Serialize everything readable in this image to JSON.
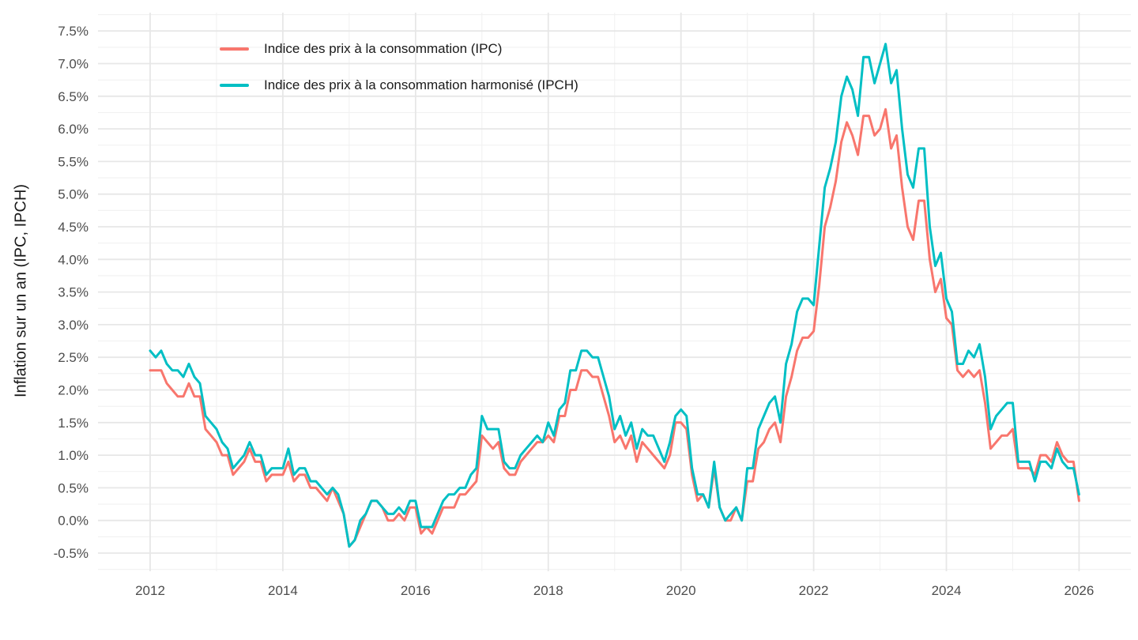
{
  "figure": {
    "background": "#FFFFFF",
    "y_axis": {
      "title": "Inflation sur un an (IPC, IPCH)",
      "tick_labels": [
        "7.5%",
        "7.0%",
        "6.5%",
        "6.0%",
        "5.5%",
        "5.0%",
        "4.5%",
        "4.0%",
        "3.5%",
        "3.0%",
        "2.5%",
        "2.0%",
        "1.5%",
        "1.0%",
        "0.5%",
        "0.0%",
        "-0.5%"
      ],
      "tick_values": [
        7.5,
        7.0,
        6.5,
        6.0,
        5.5,
        5.0,
        4.5,
        4.0,
        3.5,
        3.0,
        2.5,
        2.0,
        1.5,
        1.0,
        0.5,
        0.0,
        -0.5
      ],
      "tick_color": "#4D4D4D"
    },
    "x_axis": {
      "tick_labels": [
        "2012",
        "2014",
        "2016",
        "2018",
        "2020",
        "2022",
        "2024",
        "2026"
      ],
      "tick_values": [
        2012,
        2014,
        2016,
        2018,
        2020,
        2022,
        2024,
        2026
      ],
      "tick_color": "#4D4D4D"
    },
    "legend": {
      "items": [
        {
          "label": "Indice des prix à la consommation (IPC)",
          "color": "#F8766D"
        },
        {
          "label": "Indice des prix à la consommation harmonisé (IPCH)",
          "color": "#00BFC4"
        }
      ]
    },
    "grid": {
      "major_color": "#E7E7E7",
      "minor_color": "#F1F1F1"
    }
  },
  "chart_data": {
    "type": "line",
    "title": "",
    "xlabel": "",
    "ylabel": "Inflation sur un an (IPC, IPCH)",
    "x_unit": "month",
    "x_start": "2012-01",
    "x_end": "2026-01",
    "xlim_years": [
      2012,
      2026
    ],
    "ylim": [
      -0.5,
      7.5
    ],
    "y_tick_step": 0.5,
    "grid": "on",
    "legend_position": "top-left-inside",
    "series": [
      {
        "name": "Indice des prix à la consommation (IPC)",
        "color": "#F8766D",
        "values": [
          2.3,
          2.3,
          2.3,
          2.1,
          2.0,
          1.9,
          1.9,
          2.1,
          1.9,
          1.9,
          1.4,
          1.3,
          1.2,
          1.0,
          1.0,
          0.7,
          0.8,
          0.9,
          1.1,
          0.9,
          0.9,
          0.6,
          0.7,
          0.7,
          0.7,
          0.9,
          0.6,
          0.7,
          0.7,
          0.5,
          0.5,
          0.4,
          0.3,
          0.5,
          0.3,
          0.1,
          -0.4,
          -0.3,
          -0.1,
          0.1,
          0.3,
          0.3,
          0.2,
          0.0,
          0.0,
          0.1,
          0.0,
          0.2,
          0.2,
          -0.2,
          -0.1,
          -0.2,
          0.0,
          0.2,
          0.2,
          0.2,
          0.4,
          0.4,
          0.5,
          0.6,
          1.3,
          1.2,
          1.1,
          1.2,
          0.8,
          0.7,
          0.7,
          0.9,
          1.0,
          1.1,
          1.2,
          1.2,
          1.3,
          1.2,
          1.6,
          1.6,
          2.0,
          2.0,
          2.3,
          2.3,
          2.2,
          2.2,
          1.9,
          1.6,
          1.2,
          1.3,
          1.1,
          1.3,
          0.9,
          1.2,
          1.1,
          1.0,
          0.9,
          0.8,
          1.0,
          1.5,
          1.5,
          1.4,
          0.7,
          0.3,
          0.4,
          0.2,
          0.8,
          0.2,
          0.0,
          0.0,
          0.2,
          0.0,
          0.6,
          0.6,
          1.1,
          1.2,
          1.4,
          1.5,
          1.2,
          1.9,
          2.2,
          2.6,
          2.8,
          2.8,
          2.9,
          3.6,
          4.5,
          4.8,
          5.2,
          5.8,
          6.1,
          5.9,
          5.6,
          6.2,
          6.2,
          5.9,
          6.0,
          6.3,
          5.7,
          5.9,
          5.1,
          4.5,
          4.3,
          4.9,
          4.9,
          4.0,
          3.5,
          3.7,
          3.1,
          3.0,
          2.3,
          2.2,
          2.3,
          2.2,
          2.3,
          1.8,
          1.1,
          1.2,
          1.3,
          1.3,
          1.4,
          0.8,
          0.8,
          0.8,
          0.7,
          1.0,
          1.0,
          0.9,
          1.2,
          1.0,
          0.9,
          0.9,
          0.3
        ]
      },
      {
        "name": "Indice des prix à la consommation harmonisé (IPCH)",
        "color": "#00BFC4",
        "values": [
          2.6,
          2.5,
          2.6,
          2.4,
          2.3,
          2.3,
          2.2,
          2.4,
          2.2,
          2.1,
          1.6,
          1.5,
          1.4,
          1.2,
          1.1,
          0.8,
          0.9,
          1.0,
          1.2,
          1.0,
          1.0,
          0.7,
          0.8,
          0.8,
          0.8,
          1.1,
          0.7,
          0.8,
          0.8,
          0.6,
          0.6,
          0.5,
          0.4,
          0.5,
          0.4,
          0.1,
          -0.4,
          -0.3,
          0.0,
          0.1,
          0.3,
          0.3,
          0.2,
          0.1,
          0.1,
          0.2,
          0.1,
          0.3,
          0.3,
          -0.1,
          -0.1,
          -0.1,
          0.1,
          0.3,
          0.4,
          0.4,
          0.5,
          0.5,
          0.7,
          0.8,
          1.6,
          1.4,
          1.4,
          1.4,
          0.9,
          0.8,
          0.8,
          1.0,
          1.1,
          1.2,
          1.3,
          1.2,
          1.5,
          1.3,
          1.7,
          1.8,
          2.3,
          2.3,
          2.6,
          2.6,
          2.5,
          2.5,
          2.2,
          1.9,
          1.4,
          1.6,
          1.3,
          1.5,
          1.1,
          1.4,
          1.3,
          1.3,
          1.1,
          0.9,
          1.2,
          1.6,
          1.7,
          1.6,
          0.8,
          0.4,
          0.4,
          0.2,
          0.9,
          0.2,
          0.0,
          0.1,
          0.2,
          0.0,
          0.8,
          0.8,
          1.4,
          1.6,
          1.8,
          1.9,
          1.5,
          2.4,
          2.7,
          3.2,
          3.4,
          3.4,
          3.3,
          4.2,
          5.1,
          5.4,
          5.8,
          6.5,
          6.8,
          6.6,
          6.2,
          7.1,
          7.1,
          6.7,
          7.0,
          7.3,
          6.7,
          6.9,
          6.0,
          5.3,
          5.1,
          5.7,
          5.7,
          4.5,
          3.9,
          4.1,
          3.4,
          3.2,
          2.4,
          2.4,
          2.6,
          2.5,
          2.7,
          2.2,
          1.4,
          1.6,
          1.7,
          1.8,
          1.8,
          0.9,
          0.9,
          0.9,
          0.6,
          0.9,
          0.9,
          0.8,
          1.1,
          0.9,
          0.8,
          0.8,
          0.4
        ]
      }
    ]
  }
}
